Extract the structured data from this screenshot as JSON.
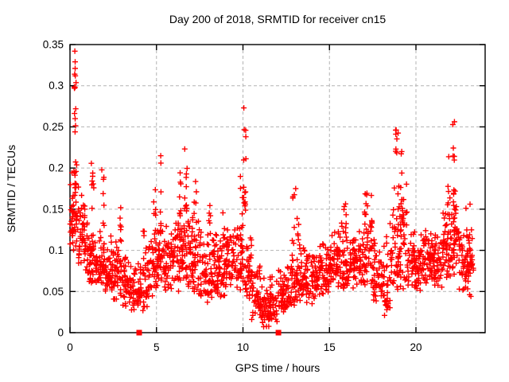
{
  "chart_data": {
    "type": "scatter",
    "title": "Day 200 of 2018, SRMTID for receiver cn15",
    "xlabel": "GPS time / hours",
    "ylabel": "SRMTID / TECUs",
    "xlim": [
      0,
      24
    ],
    "ylim": [
      0,
      0.35
    ],
    "xticks": {
      "values": [
        0,
        5,
        10,
        15,
        20
      ],
      "labels": [
        "0",
        "5",
        "10",
        "15",
        "20"
      ]
    },
    "yticks": {
      "values": [
        0,
        0.05,
        0.1,
        0.15,
        0.2,
        0.25,
        0.3,
        0.35
      ],
      "labels": [
        "0",
        "0.05",
        "0.1",
        "0.15",
        "0.2",
        "0.25",
        "0.3",
        "0.35"
      ]
    },
    "grid": true,
    "legend": "none",
    "marker": {
      "shape": "plus",
      "size": 7,
      "stroke_width": 1.4
    },
    "gap_marker": {
      "shape": "filled-square",
      "size": 7
    },
    "colors": {
      "points": "#ff0000",
      "grid": "#b3b3b3",
      "axis": "#000000",
      "background": "#ffffff"
    },
    "seed": 2018200,
    "background_bins": [
      [
        0,
        0.5,
        55,
        0.1,
        0.235
      ],
      [
        0.5,
        1,
        50,
        0.075,
        0.19
      ],
      [
        1,
        1.5,
        45,
        0.06,
        0.14
      ],
      [
        1.5,
        2,
        45,
        0.05,
        0.135
      ],
      [
        2,
        2.5,
        45,
        0.045,
        0.12
      ],
      [
        2.5,
        3,
        45,
        0.04,
        0.12
      ],
      [
        3,
        3.5,
        40,
        0.03,
        0.105
      ],
      [
        3.5,
        4,
        35,
        0.02,
        0.095
      ],
      [
        4,
        4.5,
        38,
        0.025,
        0.11
      ],
      [
        4.5,
        5,
        42,
        0.04,
        0.13
      ],
      [
        5,
        5.5,
        45,
        0.05,
        0.15
      ],
      [
        5.5,
        6,
        42,
        0.05,
        0.14
      ],
      [
        6,
        6.5,
        45,
        0.05,
        0.16
      ],
      [
        6.5,
        7,
        45,
        0.05,
        0.17
      ],
      [
        7,
        7.5,
        45,
        0.04,
        0.15
      ],
      [
        7.5,
        8,
        42,
        0.035,
        0.13
      ],
      [
        8,
        8.5,
        45,
        0.04,
        0.13
      ],
      [
        8.5,
        9,
        45,
        0.04,
        0.13
      ],
      [
        9,
        9.5,
        42,
        0.05,
        0.14
      ],
      [
        9.5,
        10,
        42,
        0.05,
        0.15
      ],
      [
        10,
        10.5,
        40,
        0.04,
        0.13
      ],
      [
        10.5,
        11,
        40,
        0.015,
        0.09
      ],
      [
        11,
        11.5,
        45,
        0.005,
        0.07
      ],
      [
        11.5,
        12,
        40,
        0.01,
        0.08
      ],
      [
        12,
        12.5,
        40,
        0.02,
        0.09
      ],
      [
        12.5,
        13,
        40,
        0.03,
        0.1
      ],
      [
        13,
        13.5,
        42,
        0.03,
        0.11
      ],
      [
        13.5,
        14,
        42,
        0.035,
        0.11
      ],
      [
        14,
        14.5,
        45,
        0.04,
        0.11
      ],
      [
        14.5,
        15,
        45,
        0.04,
        0.12
      ],
      [
        15,
        15.5,
        45,
        0.05,
        0.13
      ],
      [
        15.5,
        16,
        45,
        0.05,
        0.14
      ],
      [
        16,
        16.5,
        45,
        0.05,
        0.13
      ],
      [
        16.5,
        17,
        42,
        0.05,
        0.14
      ],
      [
        17,
        17.5,
        42,
        0.05,
        0.17
      ],
      [
        17.5,
        18,
        40,
        0.03,
        0.12
      ],
      [
        18,
        18.5,
        40,
        0.02,
        0.12
      ],
      [
        18.5,
        19,
        45,
        0.05,
        0.19
      ],
      [
        19,
        19.5,
        45,
        0.05,
        0.2
      ],
      [
        19.5,
        20,
        42,
        0.05,
        0.13
      ],
      [
        20,
        20.5,
        45,
        0.05,
        0.12
      ],
      [
        20.5,
        21,
        45,
        0.06,
        0.13
      ],
      [
        21,
        21.5,
        45,
        0.05,
        0.14
      ],
      [
        21.5,
        22,
        45,
        0.06,
        0.17
      ],
      [
        22,
        22.5,
        45,
        0.06,
        0.18
      ],
      [
        22.5,
        23,
        40,
        0.05,
        0.16
      ],
      [
        23,
        23.35,
        28,
        0.04,
        0.16
      ]
    ],
    "spike_chains": [
      [
        0.3,
        0.17,
        0.345,
        10
      ],
      [
        1.3,
        0.13,
        0.21,
        8
      ],
      [
        1.9,
        0.12,
        0.215,
        7
      ],
      [
        2.9,
        0.1,
        0.155,
        6
      ],
      [
        4.3,
        0.09,
        0.13,
        5
      ],
      [
        4.9,
        0.1,
        0.175,
        7
      ],
      [
        5.2,
        0.12,
        0.215,
        8
      ],
      [
        6.4,
        0.12,
        0.2,
        8
      ],
      [
        6.7,
        0.13,
        0.23,
        10
      ],
      [
        7.25,
        0.1,
        0.185,
        6
      ],
      [
        8.1,
        0.09,
        0.155,
        6
      ],
      [
        8.9,
        0.1,
        0.15,
        6
      ],
      [
        9.9,
        0.1,
        0.19,
        7
      ],
      [
        10.1,
        0.12,
        0.27,
        14
      ],
      [
        12.9,
        0.09,
        0.17,
        7
      ],
      [
        13.2,
        0.08,
        0.145,
        6
      ],
      [
        15.9,
        0.1,
        0.16,
        6
      ],
      [
        17.1,
        0.12,
        0.18,
        8
      ],
      [
        18.9,
        0.12,
        0.25,
        10
      ],
      [
        19.15,
        0.12,
        0.24,
        8
      ],
      [
        21.9,
        0.12,
        0.22,
        7
      ],
      [
        22.2,
        0.13,
        0.263,
        12
      ],
      [
        23.1,
        0.08,
        0.16,
        6
      ]
    ],
    "outlier_points": [
      [
        0.28,
        0.342
      ],
      [
        0.3,
        0.329
      ],
      [
        0.27,
        0.314
      ],
      [
        0.31,
        0.312
      ],
      [
        0.29,
        0.298
      ],
      [
        0.33,
        0.272
      ],
      [
        0.3,
        0.26
      ],
      [
        10.05,
        0.273
      ],
      [
        13.05,
        0.175
      ]
    ],
    "gap_points": [
      [
        4.0,
        0
      ],
      [
        12.05,
        0
      ]
    ]
  }
}
